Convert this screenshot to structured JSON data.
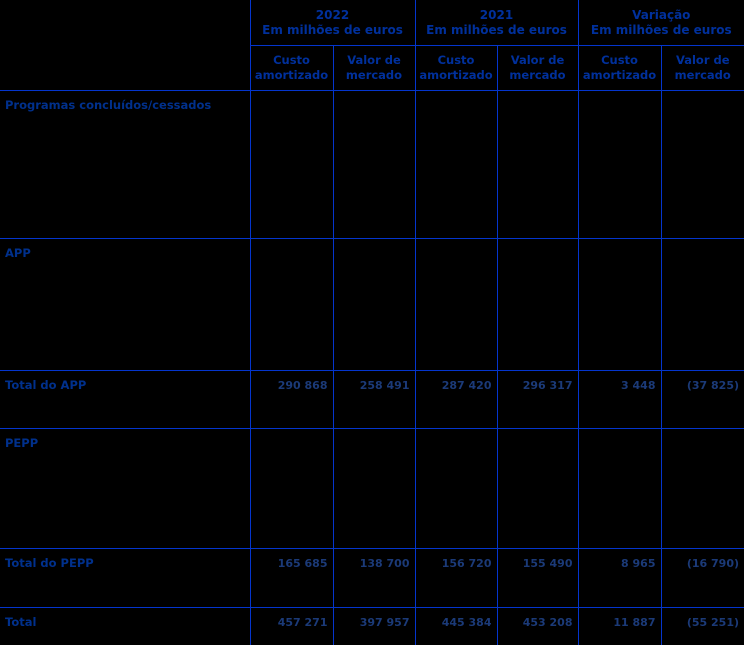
{
  "colors": {
    "background": "#000000",
    "border": "#0435cd",
    "label_text": "#00308c",
    "header_text": "#00309c",
    "number_text": "#1b3a78"
  },
  "header": {
    "groups": [
      {
        "title": "2022",
        "subtitle": "Em milhões de euros"
      },
      {
        "title": "2021",
        "subtitle": "Em milhões de euros"
      },
      {
        "title": "Variação",
        "subtitle": "Em milhões de euros"
      }
    ],
    "subcols": [
      {
        "line1": "Custo",
        "line2": "amortizado"
      },
      {
        "line1": "Valor de",
        "line2": "mercado"
      },
      {
        "line1": "Custo",
        "line2": "amortizado"
      },
      {
        "line1": "Valor de",
        "line2": "mercado"
      },
      {
        "line1": "Custo",
        "line2": "amortizado"
      },
      {
        "line1": "Valor de",
        "line2": "mercado"
      }
    ]
  },
  "rows": [
    {
      "label": "Programas concluídos/cessados",
      "values": [
        "",
        "",
        "",
        "",
        "",
        ""
      ]
    },
    {
      "label": "APP",
      "values": [
        "",
        "",
        "",
        "",
        "",
        ""
      ]
    },
    {
      "label": "Total do APP",
      "values": [
        "290 868",
        "258 491",
        "287 420",
        "296 317",
        "3 448",
        "(37 825)"
      ]
    },
    {
      "label": "PEPP",
      "values": [
        "",
        "",
        "",
        "",
        "",
        ""
      ]
    },
    {
      "label": "Total do PEPP",
      "values": [
        "165 685",
        "138 700",
        "156 720",
        "155 490",
        "8 965",
        "(16 790)"
      ]
    },
    {
      "label": "Total",
      "values": [
        "457 271",
        "397 957",
        "445 384",
        "453 208",
        "11 887",
        "(55 251)"
      ]
    }
  ],
  "chart_data": {
    "type": "table",
    "title": "",
    "unit": "Em milhões de euros",
    "columns": [
      "2022 Custo amortizado",
      "2022 Valor de mercado",
      "2021 Custo amortizado",
      "2021 Valor de mercado",
      "Variação Custo amortizado",
      "Variação Valor de mercado"
    ],
    "data_rows": [
      {
        "label": "Total do APP",
        "values": [
          290868,
          258491,
          287420,
          296317,
          3448,
          -37825
        ]
      },
      {
        "label": "Total do PEPP",
        "values": [
          165685,
          138700,
          156720,
          155490,
          8965,
          -16790
        ]
      },
      {
        "label": "Total",
        "values": [
          457271,
          397957,
          445384,
          453208,
          11887,
          -55251
        ]
      }
    ]
  }
}
